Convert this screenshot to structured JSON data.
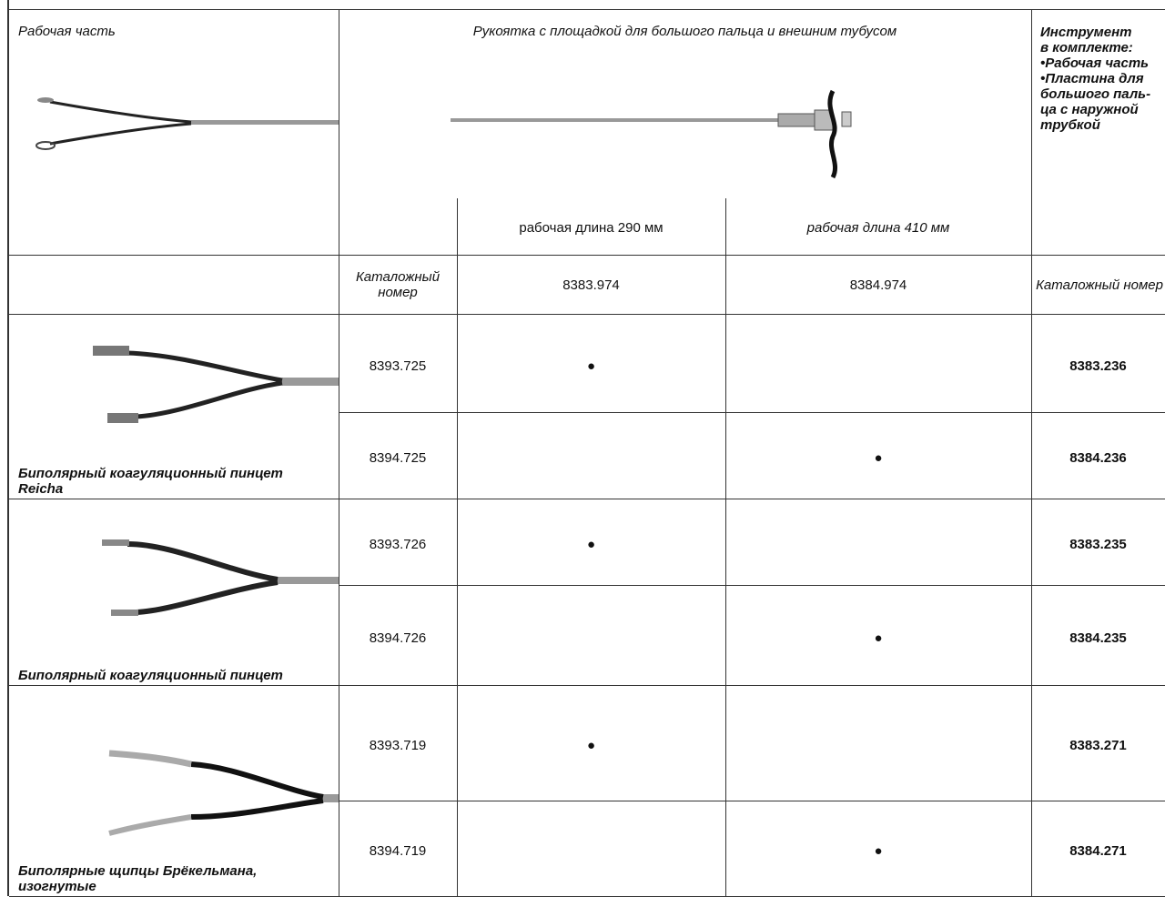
{
  "header": {
    "working_part": "Рабочая часть",
    "handle": "Рукоятка с площадкой для большого пальца и внешним тубусом",
    "set_lines": [
      "Инструмент",
      "в комплекте:",
      "•Рабочая часть",
      "•Пластина для",
      "большого паль-",
      "ца с наружной",
      "трубкой"
    ],
    "lengths": [
      "рабочая длина 290 мм",
      "рабочая длина 410 мм"
    ],
    "catalog_label_left": "Каталожный номер",
    "handle_numbers": [
      "8383.974",
      "8384.974"
    ],
    "catalog_label_right": "Каталожный номер"
  },
  "groups": [
    {
      "name": "Биполярный коагуляционный пинцет Reicha",
      "rows": [
        [
          "8393.725",
          "●",
          null,
          "8383.236"
        ],
        [
          "8394.725",
          null,
          "●",
          "8384.236"
        ]
      ]
    },
    {
      "name": "Биполярный коагуляционный пинцет",
      "rows": [
        [
          "8393.726",
          "●",
          null,
          "8383.235"
        ],
        [
          "8394.726",
          null,
          "●",
          "8384.235"
        ]
      ]
    },
    {
      "name": "Биполярные щипцы Брёкельмана, изогнутые",
      "rows": [
        [
          "8393.719",
          "●",
          null,
          "8383.271"
        ],
        [
          "8394.719",
          null,
          "●",
          "8384.271"
        ]
      ]
    }
  ]
}
